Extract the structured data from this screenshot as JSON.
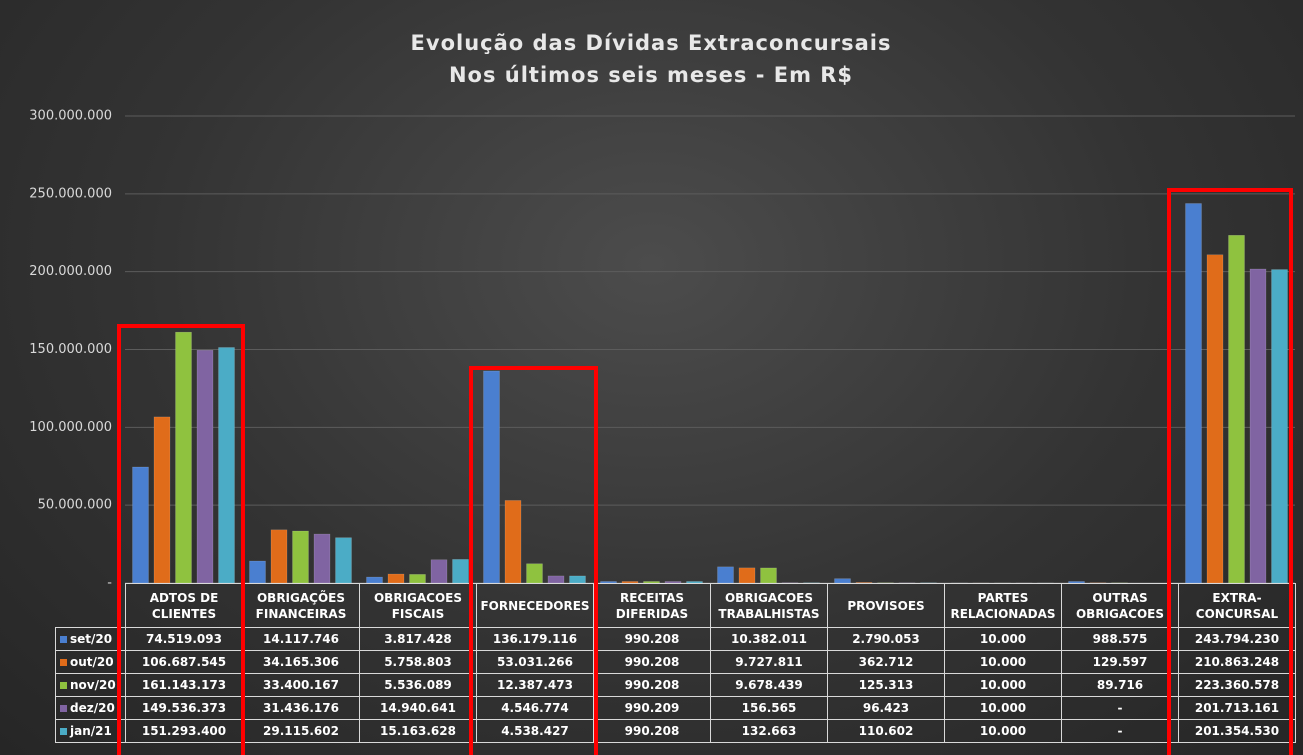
{
  "chart_data": {
    "type": "bar",
    "title": "Evolução das Dívidas Extraconcursais",
    "subtitle": "Nos últimos seis meses - Em R$",
    "categories": [
      "ADTOS DE CLIENTES",
      "OBRIGAÇÕES FINANCEIRAS",
      "OBRIGACOES FISCAIS",
      "FORNECEDORES",
      "RECEITAS DIFERIDAS",
      "OBRIGACOES TRABALHISTAS",
      "PROVISOES",
      "PARTES RELACIONADAS",
      "OUTRAS OBRIGACOES",
      "EXTRA-CONCURSAL"
    ],
    "series": [
      {
        "name": "set/20",
        "color": "#4a7fd0",
        "values": [
          74519093,
          14117746,
          3817428,
          136179116,
          990208,
          10382011,
          2790053,
          10000,
          988575,
          243794230
        ],
        "value_labels": [
          "74.519.093",
          "14.117.746",
          "3.817.428",
          "136.179.116",
          "990.208",
          "10.382.011",
          "2.790.053",
          "10.000",
          "988.575",
          "243.794.230"
        ]
      },
      {
        "name": "out/20",
        "color": "#e06c1a",
        "values": [
          106687545,
          34165306,
          5758803,
          53031266,
          990208,
          9727811,
          362712,
          10000,
          129597,
          210863248
        ],
        "value_labels": [
          "106.687.545",
          "34.165.306",
          "5.758.803",
          "53.031.266",
          "990.208",
          "9.727.811",
          "362.712",
          "10.000",
          "129.597",
          "210.863.248"
        ]
      },
      {
        "name": "nov/20",
        "color": "#8fc23f",
        "values": [
          161143173,
          33400167,
          5536089,
          12387473,
          990208,
          9678439,
          125313,
          10000,
          89716,
          223360578
        ],
        "value_labels": [
          "161.143.173",
          "33.400.167",
          "5.536.089",
          "12.387.473",
          "990.208",
          "9.678.439",
          "125.313",
          "10.000",
          "89.716",
          "223.360.578"
        ]
      },
      {
        "name": "dez/20",
        "color": "#8064a2",
        "values": [
          149536373,
          31436176,
          14940641,
          4546774,
          990209,
          156565,
          96423,
          10000,
          0,
          201713161
        ],
        "value_labels": [
          "149.536.373",
          "31.436.176",
          "14.940.641",
          "4.546.774",
          "990.209",
          "156.565",
          "96.423",
          "10.000",
          "-",
          "201.713.161"
        ]
      },
      {
        "name": "jan/21",
        "color": "#4bacc6",
        "values": [
          151293400,
          29115602,
          15163628,
          4538427,
          990208,
          132663,
          110602,
          10000,
          0,
          201354530
        ],
        "value_labels": [
          "151.293.400",
          "29.115.602",
          "15.163.628",
          "4.538.427",
          "990.208",
          "132.663",
          "110.602",
          "10.000",
          "-",
          "201.354.530"
        ]
      }
    ],
    "ylim": [
      0,
      300000000
    ],
    "yticks": [
      {
        "value": 0,
        "label": "-"
      },
      {
        "value": 50000000,
        "label": "50.000.000"
      },
      {
        "value": 100000000,
        "label": "100.000.000"
      },
      {
        "value": 150000000,
        "label": "150.000.000"
      },
      {
        "value": 200000000,
        "label": "200.000.000"
      },
      {
        "value": 250000000,
        "label": "250.000.000"
      },
      {
        "value": 300000000,
        "label": "300.000.000"
      }
    ],
    "grid": true
  }
}
